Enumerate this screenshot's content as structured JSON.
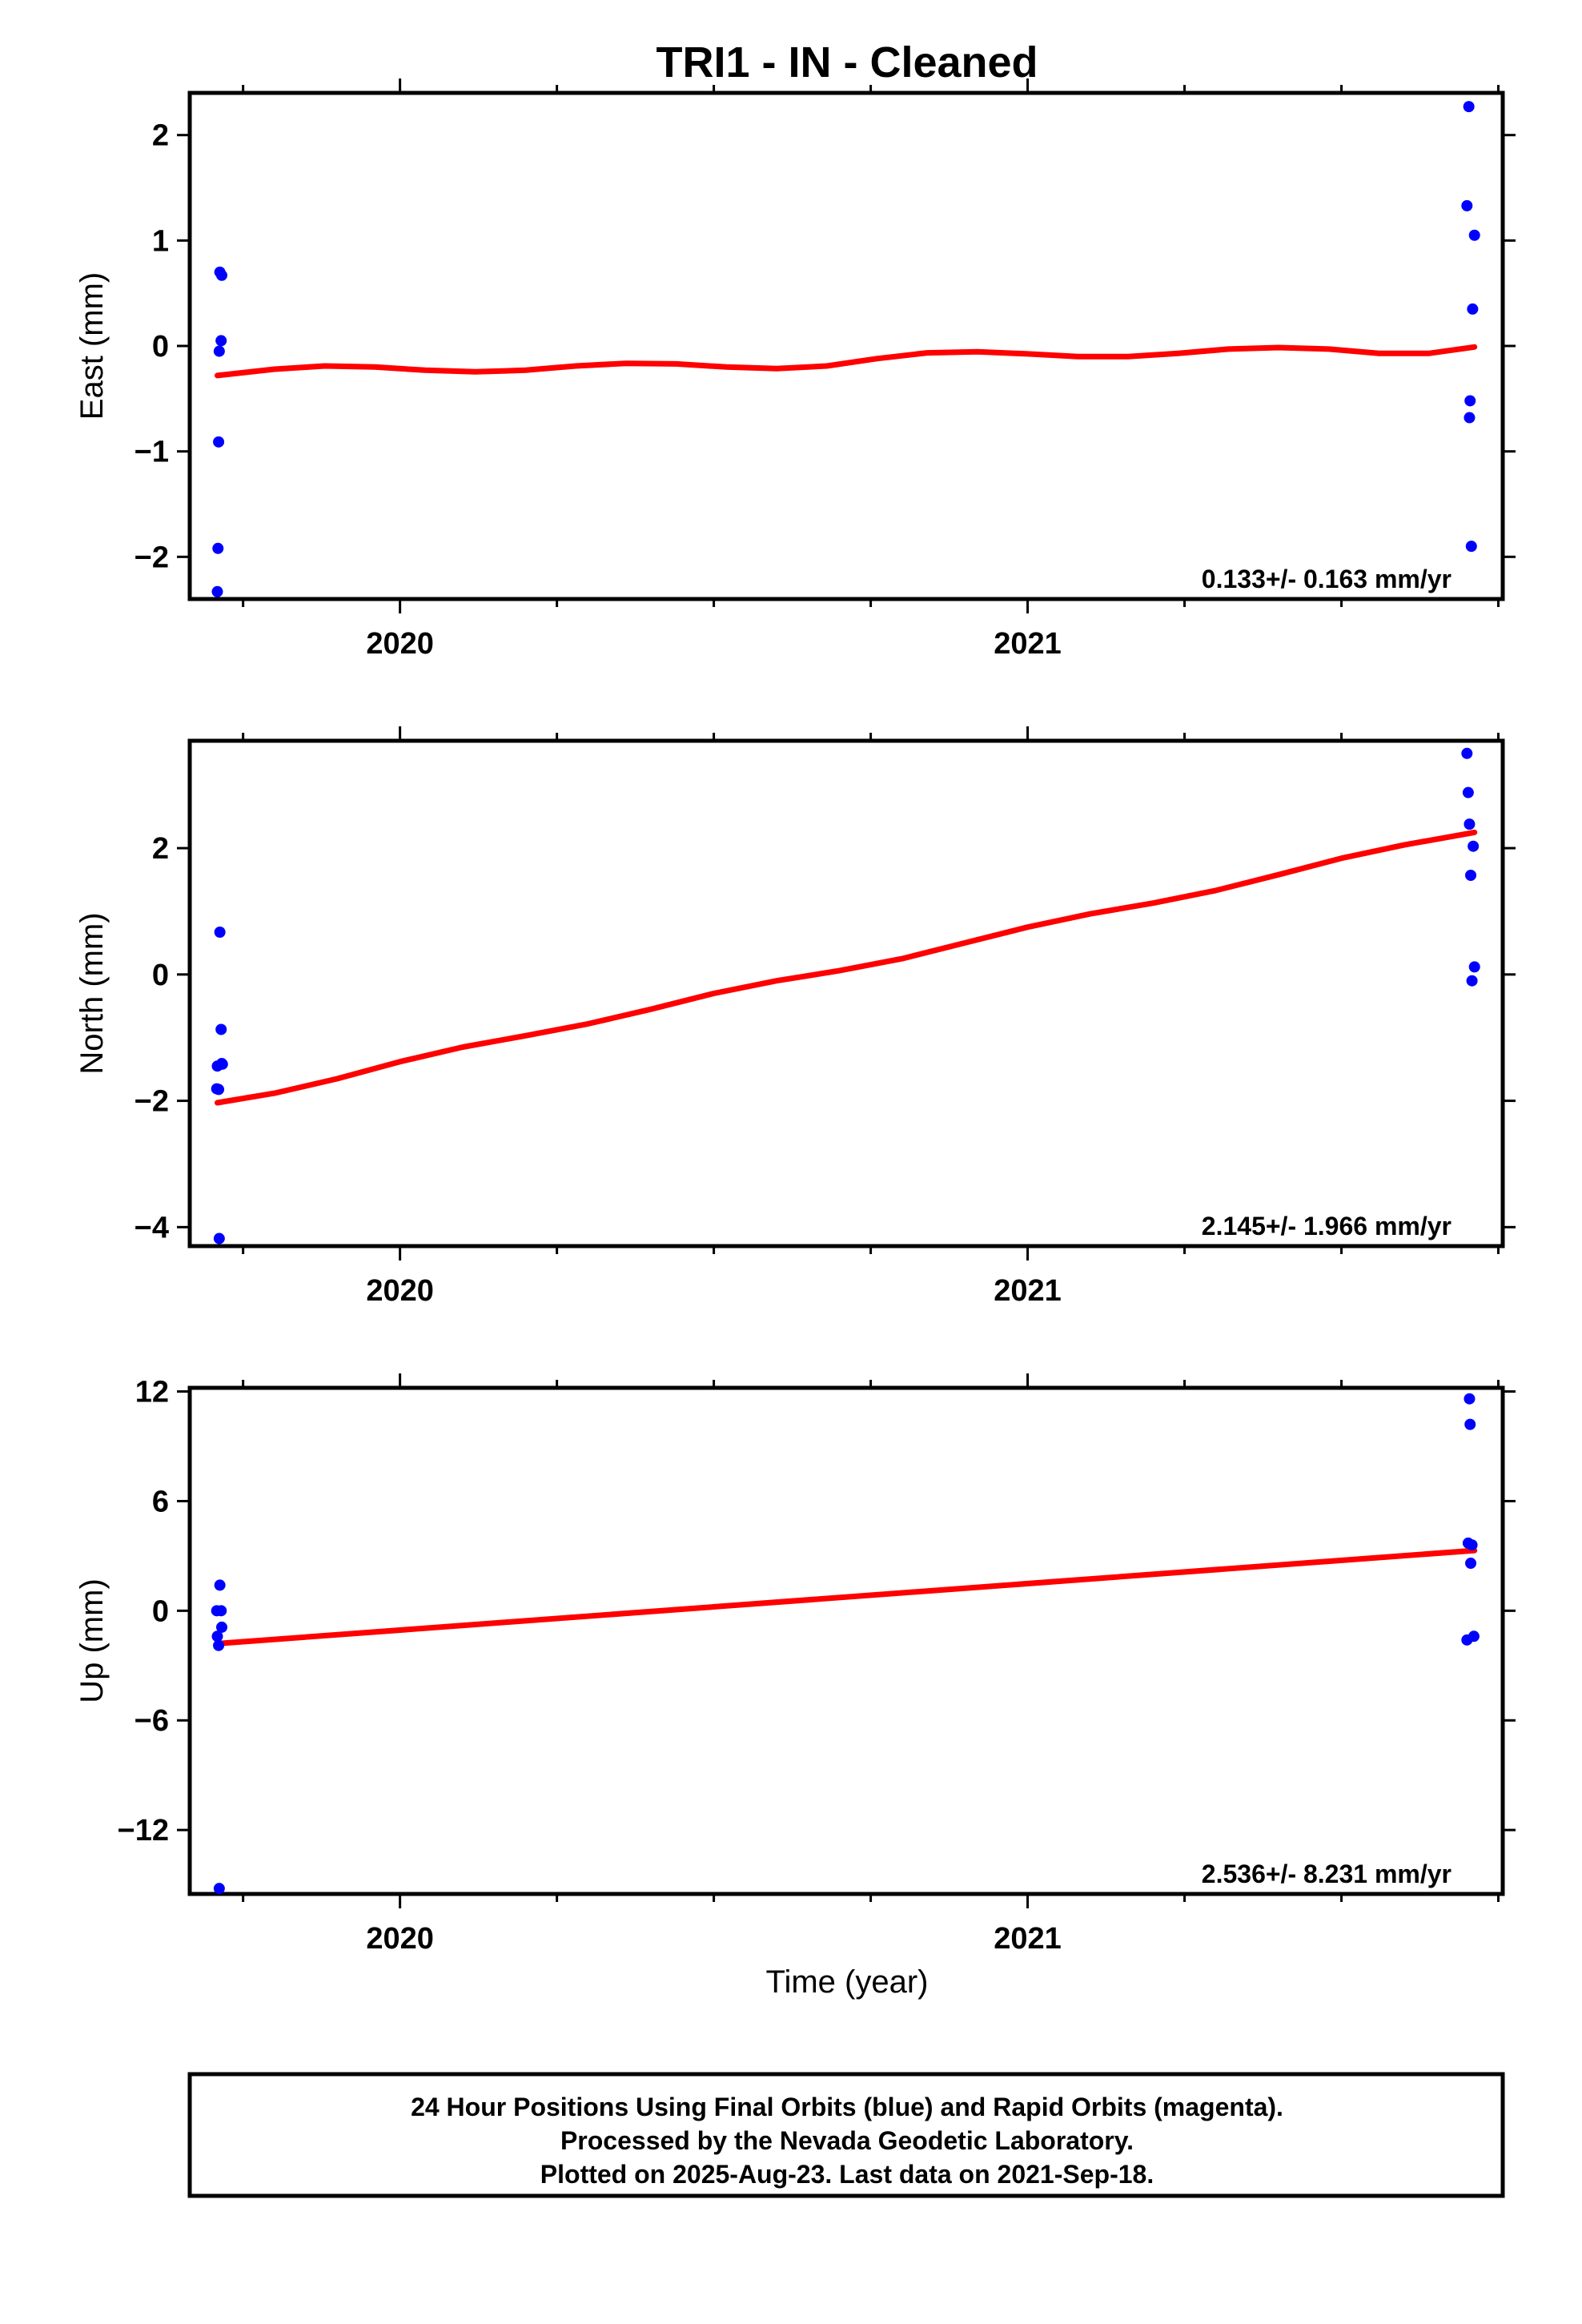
{
  "title": "TRI1  - IN - Cleaned",
  "xlabel": "Time (year)",
  "x_tick_labels": [
    "2020",
    "2021"
  ],
  "colors": {
    "data_points": "#0000ff",
    "fit_line": "#ff0000",
    "frame": "#000000"
  },
  "footer": {
    "line1": "24 Hour Positions Using Final Orbits (blue) and Rapid Orbits (magenta).",
    "line2": "Processed by the Nevada Geodetic Laboratory.",
    "line3": "Plotted on 2025-Aug-23. Last data on 2021-Sep-18."
  },
  "chart_data": [
    {
      "type": "scatter",
      "ylabel": "East (mm)",
      "rate_label": "0.133+/- 0.163 mm/yr",
      "xlim": [
        2019.665,
        2021.757
      ],
      "ylim": [
        -2.4,
        2.4
      ],
      "yticks": [
        -2,
        -1,
        0,
        1,
        2
      ],
      "ytick_labels": [
        "−2",
        "−1",
        "0",
        "1",
        "2"
      ],
      "xticks": [
        2020,
        2021
      ],
      "x_minor_ticks": [
        2019.75,
        2020.25,
        2020.5,
        2020.75,
        2021.25,
        2021.5,
        2021.75
      ],
      "series": [
        {
          "kind": "points",
          "x": [
            2019.709,
            2019.71,
            2019.711,
            2019.712,
            2019.713,
            2019.715,
            2019.716
          ],
          "y": [
            -2.33,
            -1.92,
            -0.91,
            -0.05,
            0.7,
            0.05,
            0.67
          ]
        },
        {
          "kind": "points",
          "x": [
            2021.7,
            2021.703,
            2021.704,
            2021.705,
            2021.707,
            2021.709,
            2021.712
          ],
          "y": [
            1.33,
            2.27,
            -0.68,
            -0.52,
            -1.9,
            0.35,
            1.05
          ]
        },
        {
          "kind": "fit",
          "x": [
            2019.709,
            2019.8,
            2019.88,
            2019.96,
            2020.04,
            2020.12,
            2020.2,
            2020.28,
            2020.36,
            2020.44,
            2020.52,
            2020.6,
            2020.68,
            2020.76,
            2020.84,
            2020.92,
            2021.0,
            2021.08,
            2021.16,
            2021.24,
            2021.32,
            2021.4,
            2021.48,
            2021.56,
            2021.64,
            2021.712
          ],
          "y": [
            -0.28,
            -0.22,
            -0.19,
            -0.2,
            -0.23,
            -0.245,
            -0.23,
            -0.19,
            -0.165,
            -0.17,
            -0.2,
            -0.215,
            -0.19,
            -0.12,
            -0.065,
            -0.055,
            -0.075,
            -0.1,
            -0.1,
            -0.07,
            -0.03,
            -0.015,
            -0.03,
            -0.07,
            -0.07,
            -0.01
          ]
        }
      ]
    },
    {
      "type": "scatter",
      "ylabel": "North (mm)",
      "rate_label": "2.145+/- 1.966 mm/yr",
      "xlim": [
        2019.665,
        2021.757
      ],
      "ylim": [
        -4.3,
        3.7
      ],
      "yticks": [
        -4,
        -2,
        0,
        2
      ],
      "ytick_labels": [
        "−4",
        "−2",
        "0",
        "2"
      ],
      "xticks": [
        2020,
        2021
      ],
      "x_minor_ticks": [
        2019.75,
        2020.25,
        2020.5,
        2020.75,
        2021.25,
        2021.5,
        2021.75
      ],
      "series": [
        {
          "kind": "points",
          "x": [
            2019.708,
            2019.709,
            2019.711,
            2019.712,
            2019.713,
            2019.715,
            2019.716,
            2019.717
          ],
          "y": [
            -1.81,
            -1.45,
            -1.82,
            -4.18,
            0.67,
            -0.87,
            -1.41,
            -1.42
          ]
        },
        {
          "kind": "points",
          "x": [
            2021.7,
            2021.702,
            2021.704,
            2021.706,
            2021.708,
            2021.71,
            2021.712
          ],
          "y": [
            3.5,
            2.88,
            2.38,
            1.57,
            -0.1,
            2.03,
            0.12
          ]
        },
        {
          "kind": "fit",
          "x": [
            2019.709,
            2019.8,
            2019.9,
            2020.0,
            2020.1,
            2020.2,
            2020.3,
            2020.4,
            2020.5,
            2020.6,
            2020.7,
            2020.8,
            2020.9,
            2021.0,
            2021.1,
            2021.2,
            2021.3,
            2021.4,
            2021.5,
            2021.6,
            2021.712
          ],
          "y": [
            -2.03,
            -1.88,
            -1.65,
            -1.38,
            -1.15,
            -0.97,
            -0.78,
            -0.55,
            -0.3,
            -0.1,
            0.06,
            0.25,
            0.5,
            0.75,
            0.96,
            1.13,
            1.33,
            1.58,
            1.84,
            2.05,
            2.25
          ]
        }
      ]
    },
    {
      "type": "scatter",
      "ylabel": "Up (mm)",
      "rate_label": "2.536+/- 8.231 mm/yr",
      "xlim": [
        2019.665,
        2021.757
      ],
      "ylim": [
        -15.5,
        12.2
      ],
      "yticks": [
        -12,
        -6,
        0,
        6,
        12
      ],
      "ytick_labels": [
        "−12",
        "−6",
        "0",
        "6",
        "12"
      ],
      "xticks": [
        2020,
        2021
      ],
      "x_minor_ticks": [
        2019.75,
        2020.25,
        2020.5,
        2020.75,
        2021.25,
        2021.5,
        2021.75
      ],
      "series": [
        {
          "kind": "points",
          "x": [
            2019.708,
            2019.709,
            2019.711,
            2019.712,
            2019.713,
            2019.715,
            2019.716
          ],
          "y": [
            0.0,
            -1.4,
            -1.9,
            -15.2,
            1.4,
            0.0,
            -0.9
          ]
        },
        {
          "kind": "points",
          "x": [
            2021.7,
            2021.702,
            2021.704,
            2021.705,
            2021.706,
            2021.708,
            2021.711
          ],
          "y": [
            -1.6,
            3.7,
            11.6,
            10.2,
            2.6,
            3.6,
            -1.4
          ]
        },
        {
          "kind": "fit",
          "x": [
            2019.709,
            2021.712
          ],
          "y": [
            -1.8,
            3.3
          ]
        }
      ]
    }
  ]
}
